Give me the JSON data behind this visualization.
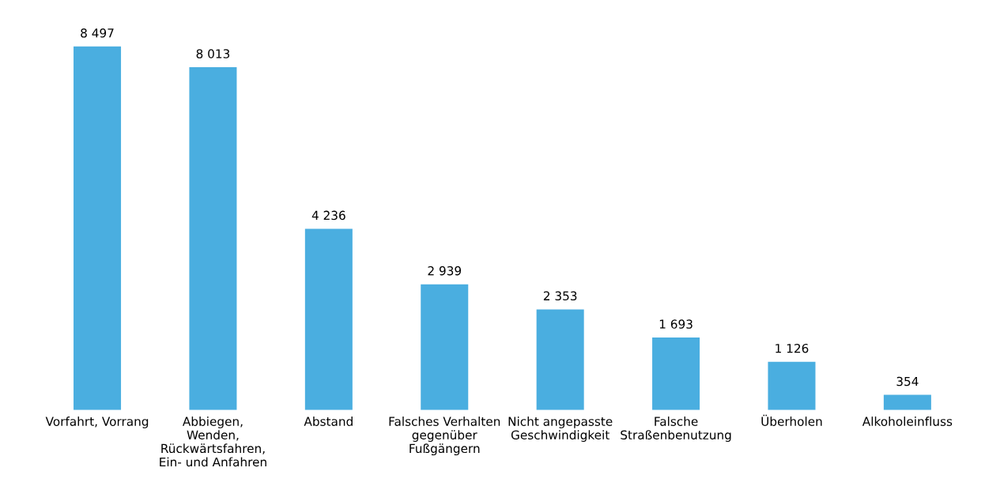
{
  "chart_data": {
    "type": "bar",
    "categories": [
      "Vorfahrt, Vorrang",
      "Abbiegen,\nWenden,\nRückwärtsfahren,\nEin- und Anfahren",
      "Abstand",
      "Falsches Verhalten\ngegenüber\nFußgängern",
      "Nicht angepasste\nGeschwindigkeit",
      "Falsche\nStraßenbenutzung",
      "Überholen",
      "Alkoholeinfluss"
    ],
    "values": [
      8497,
      8013,
      4236,
      2939,
      2353,
      1693,
      1126,
      354
    ],
    "value_labels": [
      "8 497",
      "8 013",
      "4 236",
      "2 939",
      "2 353",
      "1 693",
      "1 126",
      "354"
    ],
    "color": "#4aaee0",
    "grid": false,
    "legend": false
  }
}
